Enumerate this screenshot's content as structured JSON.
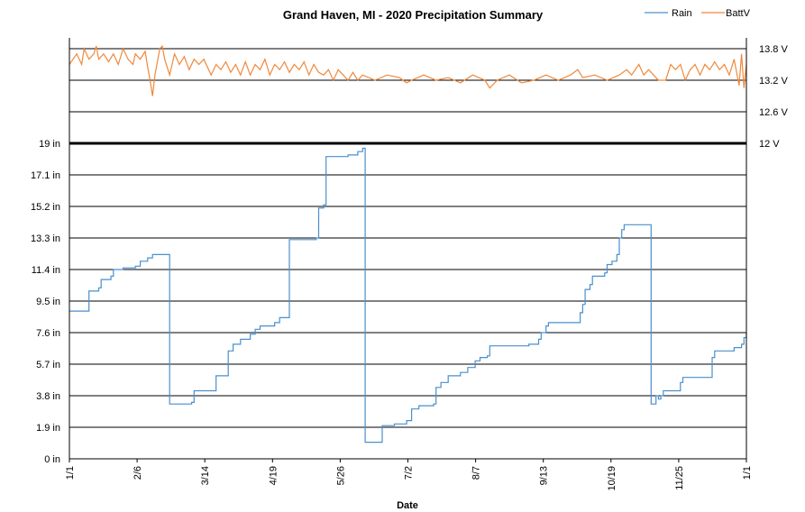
{
  "chart_data": {
    "type": "line",
    "title": "Grand Haven, MI - 2020 Precipitation Summary",
    "xlabel": "Date",
    "x_ticks": [
      "1/1",
      "2/6",
      "3/14",
      "4/19",
      "5/26",
      "7/2",
      "8/7",
      "9/13",
      "10/19",
      "11/25",
      "1/1"
    ],
    "y_left": {
      "ticks": [
        "0 in",
        "1.9 in",
        "3.8 in",
        "5.7 in",
        "7.6 in",
        "9.5 in",
        "11.4 in",
        "13.3 in",
        "15.2 in",
        "17.1 in",
        "19 in"
      ],
      "range": [
        0,
        19
      ],
      "unit": "in"
    },
    "y_right": {
      "ticks": [
        "12 V",
        "12.6 V",
        "13.2 V",
        "13.8 V"
      ],
      "range": [
        12,
        14
      ],
      "unit": "V"
    },
    "legend": {
      "position": "top-right",
      "entries": [
        "Rain",
        "BattV"
      ]
    },
    "colors": {
      "Rain": "#4a8fcf",
      "BattV": "#f0883a",
      "grid": "#000000"
    },
    "grid": true,
    "series": [
      {
        "name": "Rain",
        "axis": "left",
        "unit": "in",
        "points": [
          [
            0,
            8.9
          ],
          [
            7,
            8.9
          ],
          [
            8,
            10.1
          ],
          [
            12,
            10.3
          ],
          [
            13,
            10.8
          ],
          [
            17,
            11.0
          ],
          [
            18,
            11.4
          ],
          [
            22,
            11.5
          ],
          [
            27,
            11.6
          ],
          [
            29,
            11.9
          ],
          [
            32,
            12.1
          ],
          [
            34,
            12.3
          ],
          [
            40,
            12.3
          ],
          [
            41,
            3.3
          ],
          [
            48,
            3.3
          ],
          [
            50,
            3.4
          ],
          [
            51,
            4.1
          ],
          [
            58,
            4.1
          ],
          [
            60,
            5.0
          ],
          [
            64,
            5.0
          ],
          [
            65,
            6.5
          ],
          [
            67,
            6.9
          ],
          [
            69,
            6.9
          ],
          [
            70,
            7.2
          ],
          [
            74,
            7.5
          ],
          [
            76,
            7.8
          ],
          [
            78,
            8.0
          ],
          [
            84,
            8.2
          ],
          [
            86,
            8.5
          ],
          [
            89,
            8.5
          ],
          [
            90,
            13.2
          ],
          [
            97,
            13.2
          ],
          [
            101,
            13.3
          ],
          [
            102,
            15.1
          ],
          [
            104,
            15.3
          ],
          [
            105,
            18.2
          ],
          [
            112,
            18.2
          ],
          [
            114,
            18.3
          ],
          [
            118,
            18.5
          ],
          [
            120,
            18.7
          ],
          [
            121,
            1.0
          ],
          [
            127,
            1.0
          ],
          [
            128,
            2.0
          ],
          [
            133,
            2.1
          ],
          [
            138,
            2.3
          ],
          [
            140,
            3.0
          ],
          [
            143,
            3.2
          ],
          [
            148,
            3.2
          ],
          [
            149,
            3.3
          ],
          [
            150,
            4.3
          ],
          [
            152,
            4.6
          ],
          [
            155,
            5.0
          ],
          [
            160,
            5.2
          ],
          [
            163,
            5.5
          ],
          [
            166,
            5.9
          ],
          [
            168,
            6.1
          ],
          [
            171,
            6.2
          ],
          [
            172,
            6.8
          ],
          [
            181,
            6.8
          ],
          [
            188,
            6.9
          ],
          [
            192,
            7.2
          ],
          [
            193,
            7.6
          ],
          [
            195,
            8.0
          ],
          [
            196,
            8.2
          ],
          [
            208,
            8.2
          ],
          [
            209,
            8.8
          ],
          [
            210,
            9.3
          ],
          [
            211,
            10.2
          ],
          [
            213,
            10.5
          ],
          [
            214,
            11.0
          ],
          [
            219,
            11.2
          ],
          [
            220,
            11.7
          ],
          [
            222,
            11.9
          ],
          [
            224,
            12.3
          ],
          [
            225,
            13.3
          ],
          [
            226,
            13.8
          ],
          [
            227,
            14.1
          ],
          [
            237,
            14.1
          ],
          [
            238,
            3.3
          ],
          [
            239,
            3.3
          ],
          [
            240,
            3.8
          ],
          [
            241,
            3.6
          ],
          [
            242,
            3.8
          ],
          [
            243,
            4.1
          ],
          [
            249,
            4.1
          ],
          [
            250,
            4.6
          ],
          [
            251,
            4.9
          ],
          [
            262,
            4.9
          ],
          [
            263,
            6.1
          ],
          [
            264,
            6.5
          ],
          [
            270,
            6.5
          ],
          [
            272,
            6.7
          ],
          [
            275,
            6.9
          ],
          [
            276,
            7.3
          ],
          [
            277,
            7.6
          ]
        ]
      },
      {
        "name": "BattV",
        "axis": "right",
        "unit": "V",
        "points": [
          [
            0,
            13.5
          ],
          [
            3,
            13.7
          ],
          [
            5,
            13.5
          ],
          [
            6,
            13.8
          ],
          [
            8,
            13.6
          ],
          [
            10,
            13.7
          ],
          [
            11,
            13.85
          ],
          [
            12,
            13.6
          ],
          [
            14,
            13.7
          ],
          [
            16,
            13.55
          ],
          [
            18,
            13.7
          ],
          [
            20,
            13.5
          ],
          [
            22,
            13.8
          ],
          [
            24,
            13.6
          ],
          [
            26,
            13.5
          ],
          [
            27,
            13.7
          ],
          [
            29,
            13.6
          ],
          [
            31,
            13.75
          ],
          [
            32,
            13.45
          ],
          [
            33,
            13.2
          ],
          [
            34,
            12.9
          ],
          [
            35,
            13.3
          ],
          [
            37,
            13.8
          ],
          [
            38,
            13.85
          ],
          [
            39,
            13.6
          ],
          [
            41,
            13.3
          ],
          [
            43,
            13.7
          ],
          [
            45,
            13.5
          ],
          [
            47,
            13.65
          ],
          [
            49,
            13.4
          ],
          [
            51,
            13.6
          ],
          [
            53,
            13.5
          ],
          [
            55,
            13.6
          ],
          [
            58,
            13.3
          ],
          [
            60,
            13.5
          ],
          [
            62,
            13.4
          ],
          [
            64,
            13.55
          ],
          [
            66,
            13.35
          ],
          [
            68,
            13.5
          ],
          [
            70,
            13.3
          ],
          [
            72,
            13.55
          ],
          [
            74,
            13.3
          ],
          [
            76,
            13.5
          ],
          [
            78,
            13.4
          ],
          [
            80,
            13.6
          ],
          [
            82,
            13.3
          ],
          [
            84,
            13.5
          ],
          [
            86,
            13.4
          ],
          [
            88,
            13.55
          ],
          [
            90,
            13.35
          ],
          [
            92,
            13.5
          ],
          [
            94,
            13.4
          ],
          [
            96,
            13.55
          ],
          [
            98,
            13.3
          ],
          [
            100,
            13.5
          ],
          [
            102,
            13.35
          ],
          [
            104,
            13.3
          ],
          [
            106,
            13.4
          ],
          [
            108,
            13.2
          ],
          [
            110,
            13.4
          ],
          [
            112,
            13.3
          ],
          [
            114,
            13.2
          ],
          [
            116,
            13.35
          ],
          [
            118,
            13.2
          ],
          [
            120,
            13.3
          ],
          [
            125,
            13.2
          ],
          [
            130,
            13.3
          ],
          [
            135,
            13.25
          ],
          [
            138,
            13.15
          ],
          [
            140,
            13.2
          ],
          [
            145,
            13.3
          ],
          [
            150,
            13.2
          ],
          [
            155,
            13.25
          ],
          [
            160,
            13.15
          ],
          [
            165,
            13.3
          ],
          [
            170,
            13.2
          ],
          [
            172,
            13.05
          ],
          [
            175,
            13.2
          ],
          [
            180,
            13.3
          ],
          [
            185,
            13.15
          ],
          [
            190,
            13.2
          ],
          [
            195,
            13.3
          ],
          [
            200,
            13.2
          ],
          [
            205,
            13.3
          ],
          [
            208,
            13.4
          ],
          [
            210,
            13.25
          ],
          [
            215,
            13.3
          ],
          [
            220,
            13.2
          ],
          [
            225,
            13.3
          ],
          [
            228,
            13.4
          ],
          [
            230,
            13.3
          ],
          [
            233,
            13.5
          ],
          [
            235,
            13.3
          ],
          [
            237,
            13.4
          ],
          [
            239,
            13.3
          ],
          [
            241,
            13.2
          ],
          [
            244,
            13.2
          ],
          [
            246,
            13.5
          ],
          [
            248,
            13.4
          ],
          [
            250,
            13.5
          ],
          [
            252,
            13.2
          ],
          [
            254,
            13.4
          ],
          [
            256,
            13.5
          ],
          [
            258,
            13.3
          ],
          [
            260,
            13.5
          ],
          [
            262,
            13.4
          ],
          [
            264,
            13.55
          ],
          [
            266,
            13.4
          ],
          [
            268,
            13.5
          ],
          [
            270,
            13.3
          ],
          [
            272,
            13.6
          ],
          [
            274,
            13.1
          ],
          [
            275,
            13.7
          ],
          [
            276,
            13.05
          ],
          [
            277,
            13.5
          ]
        ]
      }
    ]
  }
}
